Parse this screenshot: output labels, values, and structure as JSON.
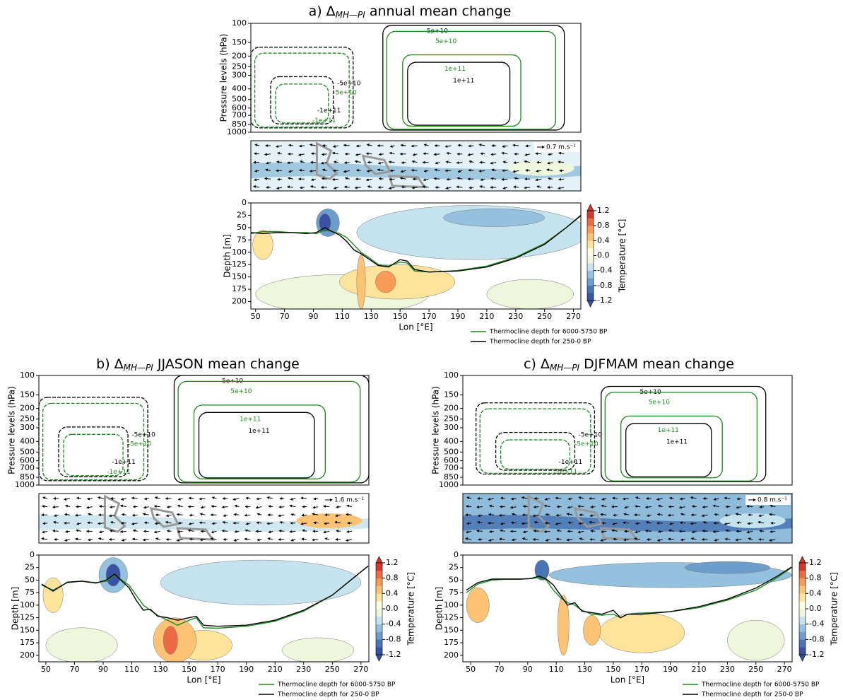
{
  "chart_data": [
    {
      "type": "section",
      "title": {
        "prefix": "a) Δ",
        "subscript": "MH—PI",
        "suffix": " annual mean change"
      },
      "pressure": {
        "ylabel": "Pressure levels (hPa)",
        "ylim": [
          100,
          1000
        ],
        "yscale": "log",
        "yticks": [
          100,
          150,
          200,
          250,
          300,
          400,
          500,
          600,
          700,
          850,
          1000
        ],
        "contours": [
          {
            "label": "-5e+10",
            "color": "#000000",
            "dashed": true
          },
          {
            "label": "-5e+10",
            "color": "#1a8a1a",
            "dashed": true
          },
          {
            "label": "-1e+11",
            "color": "#000000",
            "dashed": true
          },
          {
            "label": "-1e+11",
            "color": "#1a8a1a",
            "dashed": true
          },
          {
            "label": "5e+10",
            "color": "#000000",
            "dashed": false
          },
          {
            "label": "5e+10",
            "color": "#1a8a1a",
            "dashed": false
          },
          {
            "label": "1e+11",
            "color": "#1a8a1a",
            "dashed": false
          },
          {
            "label": "1e+11",
            "color": "#000000",
            "dashed": false
          }
        ]
      },
      "wind": {
        "scale_label": "0.7 m.s⁻¹"
      },
      "xlabel": "Lon [°E]",
      "xlim": [
        46.7,
        275.1
      ],
      "xticks": [
        50,
        70,
        90,
        110,
        130,
        150,
        170,
        190,
        210,
        230,
        250,
        270
      ],
      "ylabel": "Depth [m]",
      "ylim": [
        0,
        215
      ],
      "yticks": [
        0,
        25,
        50,
        75,
        100,
        125,
        150,
        175,
        200
      ],
      "x": [
        47,
        55,
        65,
        75,
        85,
        92,
        98,
        103,
        108,
        113,
        118,
        123,
        128,
        135,
        142,
        150,
        155,
        160,
        170,
        190,
        210,
        230,
        250,
        265,
        275
      ],
      "series": [
        {
          "name": "Thermocline depth for 6000-5750 BP",
          "color": "#1a8a1a",
          "values": [
            62,
            58,
            58,
            60,
            60,
            62,
            55,
            58,
            62,
            70,
            85,
            100,
            110,
            125,
            128,
            120,
            122,
            138,
            140,
            137,
            128,
            110,
            82,
            50,
            25
          ]
        },
        {
          "name": "Thermocline depth for 250-0 BP",
          "color": "#000000",
          "values": [
            60,
            62,
            60,
            60,
            62,
            60,
            50,
            58,
            65,
            78,
            95,
            103,
            113,
            127,
            130,
            115,
            118,
            135,
            140,
            138,
            130,
            112,
            84,
            50,
            26
          ]
        }
      ],
      "anomalies": [
        {
          "lon": 110,
          "depth": 185,
          "dlon": 60,
          "ddepth": 40,
          "value": -0.1
        },
        {
          "lon": 240,
          "depth": 185,
          "dlon": 30,
          "ddepth": 30,
          "value": -0.1
        },
        {
          "lon": 200,
          "depth": 60,
          "dlon": 80,
          "ddepth": 55,
          "value": -0.3
        },
        {
          "lon": 215,
          "depth": 30,
          "dlon": 35,
          "ddepth": 18,
          "value": -0.5
        },
        {
          "lon": 100,
          "depth": 40,
          "dlon": 8,
          "ddepth": 28,
          "value": -0.7
        },
        {
          "lon": 98,
          "depth": 40,
          "dlon": 4,
          "ddepth": 18,
          "value": -1.1
        },
        {
          "lon": 55,
          "depth": 85,
          "dlon": 7,
          "ddepth": 30,
          "value": 0.3
        },
        {
          "lon": 148,
          "depth": 160,
          "dlon": 40,
          "ddepth": 35,
          "value": 0.3
        },
        {
          "lon": 140,
          "depth": 160,
          "dlon": 7,
          "ddepth": 22,
          "value": 0.7
        },
        {
          "lon": 123,
          "depth": 160,
          "dlon": 3,
          "ddepth": 55,
          "value": 0.4
        }
      ],
      "colorbar": {
        "label": "Temperature [°C]",
        "clim": [
          -1.2,
          1.2
        ],
        "ticks": [
          1.2,
          0.8,
          0.4,
          {
            "value": 0,
            "label": "0.0"
          },
          -0.4,
          -0.8,
          -1.2
        ],
        "colors": [
          "#3a52a3",
          "#4a75b4",
          "#6d9ecb",
          "#94c1dd",
          "#c5e3ef",
          "#eef6dc",
          "#fffde0",
          "#fee49a",
          "#fdc374",
          "#f99a57",
          "#ed6b42",
          "#d2382c"
        ]
      }
    },
    {
      "type": "section",
      "title": {
        "prefix": "b) Δ",
        "subscript": "MH—PI",
        "suffix": " JJASON mean change"
      },
      "pressure": {
        "ylabel": "Pressure levels (hPa)",
        "ylim": [
          100,
          1000
        ],
        "yscale": "log",
        "yticks": [
          100,
          150,
          200,
          250,
          300,
          400,
          500,
          600,
          700,
          850,
          1000
        ],
        "contours": [
          {
            "label": "-5e+10",
            "color": "#000000",
            "dashed": true
          },
          {
            "label": "-5e+10",
            "color": "#1a8a1a",
            "dashed": true
          },
          {
            "label": "-1e+11",
            "color": "#000000",
            "dashed": true
          },
          {
            "label": "-1e+11",
            "color": "#1a8a1a",
            "dashed": true
          },
          {
            "label": "5e+10",
            "color": "#000000",
            "dashed": false
          },
          {
            "label": "5e+10",
            "color": "#1a8a1a",
            "dashed": false
          },
          {
            "label": "1e+11",
            "color": "#1a8a1a",
            "dashed": false
          },
          {
            "label": "1e+11",
            "color": "#000000",
            "dashed": false
          }
        ]
      },
      "wind": {
        "scale_label": "1.6 m.s⁻¹"
      },
      "xlabel": "Lon [°E]",
      "xlim": [
        45.1,
        275.5
      ],
      "xticks": [
        50,
        70,
        90,
        110,
        130,
        150,
        170,
        190,
        210,
        230,
        250,
        270
      ],
      "ylabel": "Depth [m]",
      "ylim": [
        0,
        213
      ],
      "yticks": [
        0,
        25,
        50,
        75,
        100,
        125,
        150,
        175,
        200
      ],
      "x": [
        47,
        55,
        65,
        75,
        85,
        92,
        98,
        103,
        108,
        113,
        118,
        123,
        128,
        135,
        142,
        150,
        155,
        160,
        170,
        190,
        210,
        230,
        250,
        265,
        275
      ],
      "series": [
        {
          "name": "Thermocline depth for 6000-5750 BP",
          "color": "#1a8a1a",
          "values": [
            60,
            70,
            55,
            52,
            55,
            52,
            40,
            50,
            60,
            80,
            100,
            110,
            120,
            130,
            140,
            130,
            125,
            145,
            146,
            142,
            132,
            112,
            80,
            45,
            22
          ]
        },
        {
          "name": "Thermocline depth for 250-0 BP",
          "color": "#000000",
          "values": [
            58,
            72,
            54,
            52,
            56,
            50,
            38,
            52,
            65,
            90,
            110,
            108,
            122,
            125,
            130,
            125,
            122,
            140,
            142,
            140,
            130,
            110,
            80,
            45,
            22
          ]
        }
      ],
      "anomalies": [
        {
          "lon": 75,
          "depth": 180,
          "dlon": 25,
          "ddepth": 35,
          "value": -0.1
        },
        {
          "lon": 240,
          "depth": 190,
          "dlon": 25,
          "ddepth": 25,
          "value": -0.1
        },
        {
          "lon": 200,
          "depth": 55,
          "dlon": 70,
          "ddepth": 45,
          "value": -0.3
        },
        {
          "lon": 97,
          "depth": 40,
          "dlon": 10,
          "ddepth": 35,
          "value": -0.6
        },
        {
          "lon": 97,
          "depth": 40,
          "dlon": 5,
          "ddepth": 22,
          "value": -1.1
        },
        {
          "lon": 55,
          "depth": 80,
          "dlon": 7,
          "ddepth": 35,
          "value": 0.3
        },
        {
          "lon": 160,
          "depth": 180,
          "dlon": 20,
          "ddepth": 30,
          "value": 0.3
        },
        {
          "lon": 140,
          "depth": 170,
          "dlon": 15,
          "ddepth": 45,
          "value": 0.5
        },
        {
          "lon": 137,
          "depth": 170,
          "dlon": 5,
          "ddepth": 28,
          "value": 0.9
        }
      ],
      "colorbar": {
        "label": "Temperature [°C]",
        "clim": [
          -1.2,
          1.2
        ],
        "ticks": [
          1.2,
          0.8,
          0.4,
          {
            "value": 0,
            "label": "0.0"
          },
          -0.4,
          -0.8,
          -1.2
        ],
        "colors": [
          "#3a52a3",
          "#4a75b4",
          "#6d9ecb",
          "#94c1dd",
          "#c5e3ef",
          "#eef6dc",
          "#fffde0",
          "#fee49a",
          "#fdc374",
          "#f99a57",
          "#ed6b42",
          "#d2382c"
        ]
      }
    },
    {
      "type": "section",
      "title": {
        "prefix": "c) Δ",
        "subscript": "MH—PI",
        "suffix": " DJFMAM mean change"
      },
      "pressure": {
        "ylabel": "Pressure levels (hPa)",
        "ylim": [
          100,
          1000
        ],
        "yscale": "log",
        "yticks": [
          100,
          150,
          200,
          250,
          300,
          400,
          500,
          600,
          700,
          850,
          1000
        ],
        "contours": [
          {
            "label": "-5e+10",
            "color": "#000000",
            "dashed": true
          },
          {
            "label": "-5e+10",
            "color": "#1a8a1a",
            "dashed": true
          },
          {
            "label": "-1e+11",
            "color": "#000000",
            "dashed": true
          },
          {
            "label": "-1e+11",
            "color": "#1a8a1a",
            "dashed": true
          },
          {
            "label": "5e+10",
            "color": "#000000",
            "dashed": false
          },
          {
            "label": "5e+10",
            "color": "#1a8a1a",
            "dashed": false
          },
          {
            "label": "1e+11",
            "color": "#1a8a1a",
            "dashed": false
          },
          {
            "label": "1e+11",
            "color": "#000000",
            "dashed": false
          }
        ]
      },
      "wind": {
        "scale_label": "0.8 m.s⁻¹"
      },
      "xlabel": "Lon [°E]",
      "xlim": [
        44.5,
        275.4
      ],
      "xticks": [
        50,
        70,
        90,
        110,
        130,
        150,
        170,
        190,
        210,
        230,
        250,
        270
      ],
      "ylabel": "Depth [m]",
      "ylim": [
        0,
        213
      ],
      "yticks": [
        0,
        25,
        50,
        75,
        100,
        125,
        150,
        175,
        200
      ],
      "x": [
        47,
        55,
        65,
        75,
        85,
        92,
        98,
        103,
        108,
        113,
        118,
        123,
        128,
        135,
        142,
        150,
        155,
        160,
        170,
        190,
        210,
        230,
        250,
        265,
        275
      ],
      "series": [
        {
          "name": "Thermocline depth for 6000-5750 BP",
          "color": "#1a8a1a",
          "values": [
            75,
            58,
            50,
            48,
            48,
            47,
            45,
            50,
            70,
            85,
            95,
            100,
            110,
            118,
            120,
            118,
            125,
            118,
            116,
            113,
            105,
            90,
            70,
            45,
            25
          ]
        },
        {
          "name": "Thermocline depth for 250-0 BP",
          "color": "#000000",
          "values": [
            70,
            55,
            48,
            48,
            48,
            47,
            42,
            48,
            60,
            80,
            100,
            95,
            112,
            115,
            118,
            110,
            125,
            118,
            118,
            113,
            103,
            88,
            66,
            42,
            24
          ]
        }
      ],
      "anomalies": [
        {
          "lon": 250,
          "depth": 170,
          "dlon": 20,
          "ddepth": 40,
          "value": -0.1
        },
        {
          "lon": 190,
          "depth": 40,
          "dlon": 85,
          "ddepth": 25,
          "value": -0.5
        },
        {
          "lon": 230,
          "depth": 25,
          "dlon": 30,
          "ddepth": 12,
          "value": -0.7
        },
        {
          "lon": 100,
          "depth": 30,
          "dlon": 5,
          "ddepth": 20,
          "value": -0.9
        },
        {
          "lon": 55,
          "depth": 100,
          "dlon": 8,
          "ddepth": 35,
          "value": 0.4
        },
        {
          "lon": 170,
          "depth": 155,
          "dlon": 30,
          "ddepth": 40,
          "value": 0.3
        },
        {
          "lon": 115,
          "depth": 140,
          "dlon": 4,
          "ddepth": 60,
          "value": 0.4
        },
        {
          "lon": 135,
          "depth": 150,
          "dlon": 6,
          "ddepth": 30,
          "value": 0.5
        }
      ],
      "colorbar": {
        "label": "Temperature [°C]",
        "clim": [
          -1.2,
          1.2
        ],
        "ticks": [
          1.2,
          0.8,
          0.4,
          {
            "value": 0,
            "label": "0.0"
          },
          -0.4,
          -0.8,
          -1.2
        ],
        "colors": [
          "#3a52a3",
          "#4a75b4",
          "#6d9ecb",
          "#94c1dd",
          "#c5e3ef",
          "#eef6dc",
          "#fffde0",
          "#fee49a",
          "#fdc374",
          "#f99a57",
          "#ed6b42",
          "#d2382c"
        ]
      }
    }
  ]
}
